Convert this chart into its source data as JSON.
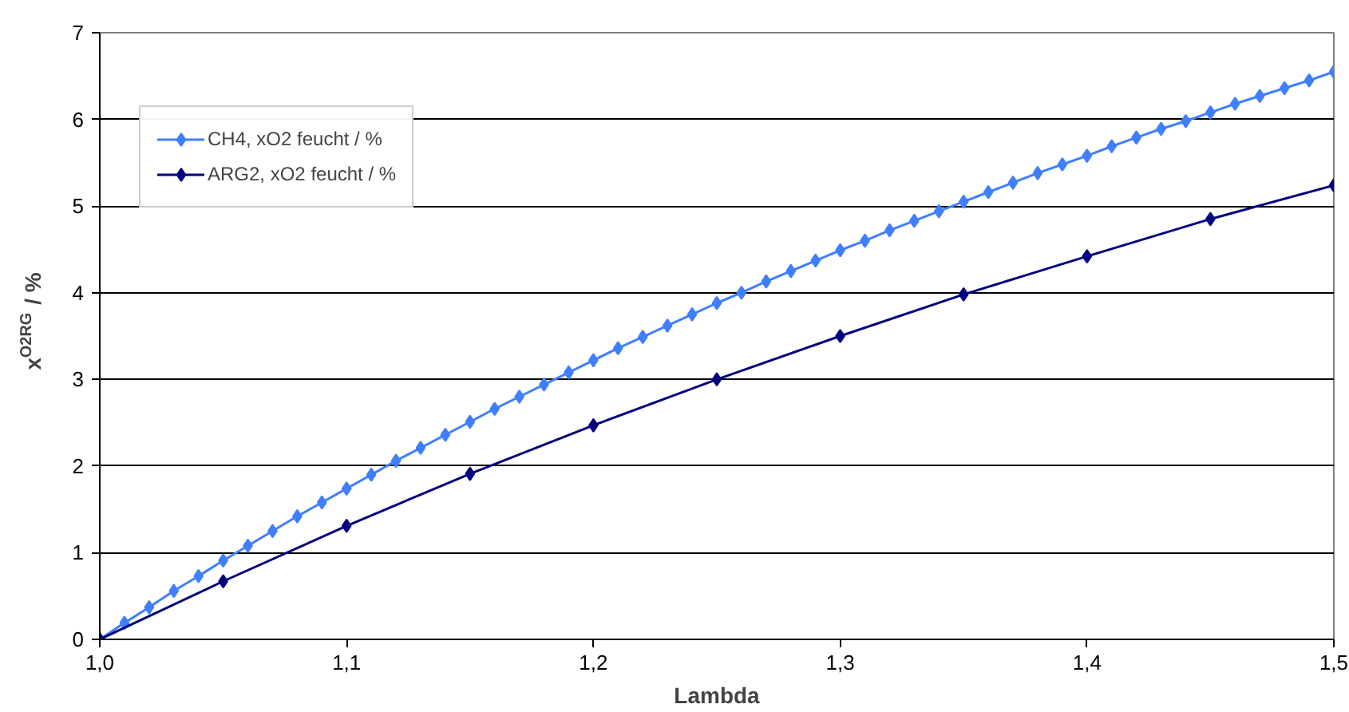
{
  "chart_data": {
    "type": "line",
    "xlabel": "Lambda",
    "ylabel": "x$^{O2RG}$ / %",
    "xlim": [
      1.0,
      1.5
    ],
    "ylim": [
      0,
      7
    ],
    "xticks": [
      {
        "value": 1.0,
        "label": "1,0"
      },
      {
        "value": 1.1,
        "label": "1,1"
      },
      {
        "value": 1.2,
        "label": "1,2"
      },
      {
        "value": 1.3,
        "label": "1,3"
      },
      {
        "value": 1.4,
        "label": "1,4"
      },
      {
        "value": 1.5,
        "label": "1,5"
      }
    ],
    "yticks": [
      0,
      1,
      2,
      3,
      4,
      5,
      6,
      7
    ],
    "grid": "y",
    "legend": "top left",
    "marker": "diamond",
    "line_style": "solid",
    "series": [
      {
        "name": "CH4, xO2 feucht / %",
        "color": "#3f7fff",
        "x": [
          1.0,
          1.01,
          1.02,
          1.03,
          1.04,
          1.05,
          1.06,
          1.07,
          1.08,
          1.09,
          1.1,
          1.11,
          1.12,
          1.13,
          1.14,
          1.15,
          1.16,
          1.17,
          1.18,
          1.19,
          1.2,
          1.21,
          1.22,
          1.23,
          1.24,
          1.25,
          1.26,
          1.27,
          1.28,
          1.29,
          1.3,
          1.31,
          1.32,
          1.33,
          1.34,
          1.35,
          1.36,
          1.37,
          1.38,
          1.39,
          1.4,
          1.41,
          1.42,
          1.43,
          1.44,
          1.45,
          1.46,
          1.47,
          1.48,
          1.49,
          1.5
        ],
        "values": [
          0,
          0.19,
          0.37,
          0.56,
          0.73,
          0.91,
          1.08,
          1.25,
          1.42,
          1.58,
          1.74,
          1.9,
          2.06,
          2.21,
          2.36,
          2.51,
          2.66,
          2.8,
          2.94,
          3.08,
          3.22,
          3.36,
          3.49,
          3.62,
          3.75,
          3.88,
          4.0,
          4.13,
          4.25,
          4.37,
          4.49,
          4.6,
          4.72,
          4.83,
          4.94,
          5.05,
          5.16,
          5.27,
          5.38,
          5.48,
          5.58,
          5.69,
          5.79,
          5.89,
          5.98,
          6.08,
          6.18,
          6.27,
          6.36,
          6.45,
          6.55
        ]
      },
      {
        "name": "ARG2, xO2 feucht / %",
        "color": "#000080",
        "x": [
          1.0,
          1.05,
          1.1,
          1.15,
          1.2,
          1.25,
          1.3,
          1.35,
          1.4,
          1.45,
          1.5
        ],
        "values": [
          0,
          0.67,
          1.31,
          1.91,
          2.47,
          3.0,
          3.5,
          3.98,
          4.42,
          4.85,
          5.24
        ]
      }
    ]
  }
}
